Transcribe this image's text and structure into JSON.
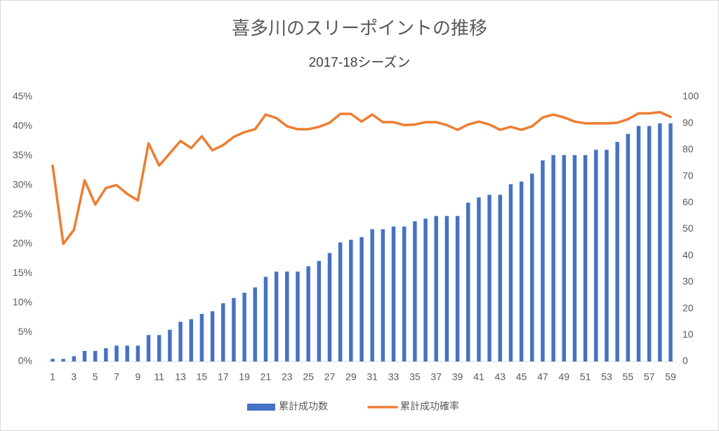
{
  "chart_data": {
    "type": "bar_line",
    "title": "喜多川のスリーポイントの推移",
    "subtitle": "2017-18シーズン",
    "categories": [
      "1",
      null,
      "3",
      null,
      "5",
      null,
      "7",
      null,
      "9",
      null,
      "11",
      null,
      "13",
      null,
      "15",
      null,
      "17",
      null,
      "19",
      null,
      "21",
      null,
      "23",
      null,
      "25",
      null,
      "27",
      null,
      "29",
      null,
      "31",
      null,
      "33",
      null,
      "35",
      null,
      "37",
      null,
      "39",
      null,
      "41",
      null,
      "43",
      null,
      "45",
      null,
      "47",
      null,
      "49",
      null,
      "51",
      null,
      "53",
      null,
      "55",
      null,
      "57",
      null,
      "59"
    ],
    "series": [
      {
        "name": "累計成功数",
        "type": "bar",
        "color": "#4472c4",
        "axis": "y2",
        "values": [
          1,
          1,
          2,
          4,
          4,
          5,
          6,
          6,
          6,
          10,
          10,
          12,
          15,
          16,
          18,
          19,
          22,
          24,
          26,
          28,
          32,
          34,
          34,
          34,
          36,
          38,
          41,
          45,
          46,
          47,
          50,
          50,
          51,
          51,
          53,
          54,
          55,
          55,
          55,
          60,
          62,
          63,
          63,
          67,
          68,
          71,
          76,
          78,
          78,
          78,
          78,
          80,
          80,
          83,
          86,
          89,
          89,
          90,
          90
        ]
      },
      {
        "name": "累計成功確率",
        "type": "line",
        "color": "#ed7d31",
        "axis": "y",
        "values": [
          33.3,
          20,
          22.4,
          30.8,
          26.7,
          29.5,
          30,
          28.5,
          27.4,
          37.1,
          33.3,
          35.4,
          37.5,
          36.3,
          38.3,
          35.9,
          36.8,
          38.2,
          39,
          39.5,
          42,
          41.4,
          40,
          39.5,
          39.5,
          39.9,
          40.6,
          42.1,
          42.1,
          40.8,
          42,
          40.7,
          40.7,
          40.2,
          40.3,
          40.7,
          40.7,
          40.2,
          39.4,
          40.3,
          40.8,
          40.3,
          39.4,
          39.9,
          39.4,
          40,
          41.5,
          42,
          41.5,
          40.8,
          40.5,
          40.5,
          40.5,
          40.6,
          41.2,
          42.2,
          42.2,
          42.4,
          41.6
        ]
      }
    ],
    "ylim": [
      0,
      45
    ],
    "yticks": [
      {
        "value": 0,
        "label": "0%"
      },
      {
        "value": 5,
        "label": "5%"
      },
      {
        "value": 10,
        "label": "10%"
      },
      {
        "value": 15,
        "label": "15%"
      },
      {
        "value": 20,
        "label": "20%"
      },
      {
        "value": 25,
        "label": "25%"
      },
      {
        "value": 30,
        "label": "30%"
      },
      {
        "value": 35,
        "label": "35%"
      },
      {
        "value": 40,
        "label": "40%"
      },
      {
        "value": 45,
        "label": "45%"
      }
    ],
    "y2lim": [
      0,
      100
    ],
    "y2ticks": [
      0,
      10,
      20,
      30,
      40,
      50,
      60,
      70,
      80,
      90,
      100
    ],
    "grid": false,
    "legend": "bottom"
  }
}
